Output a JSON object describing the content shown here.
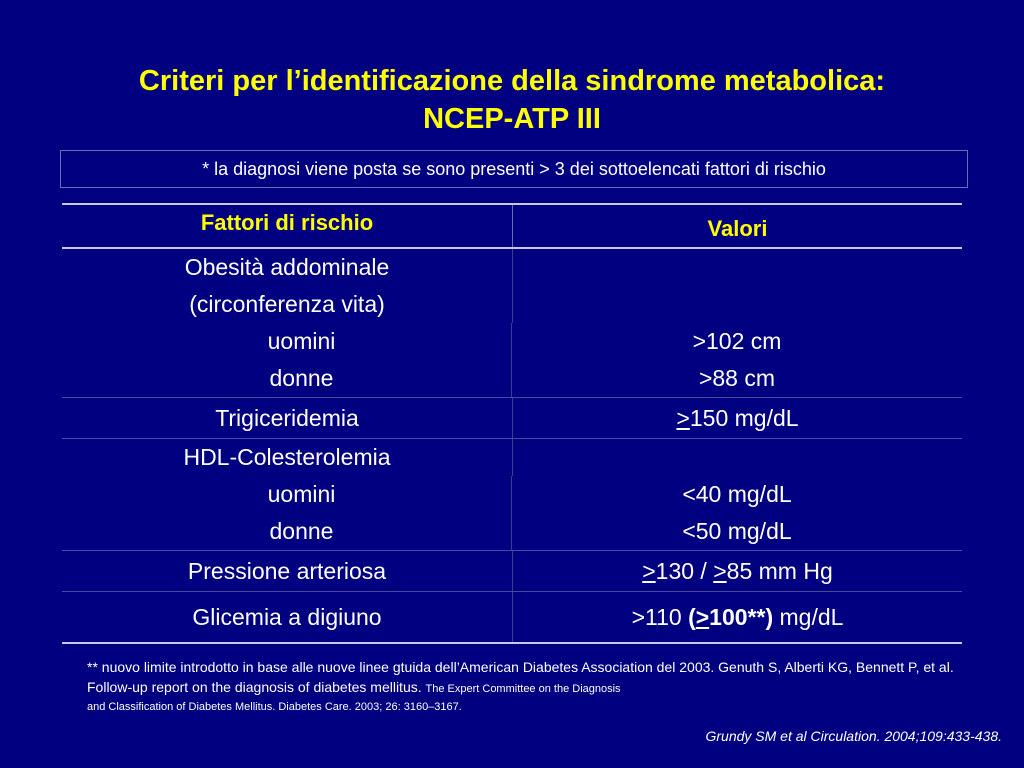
{
  "title": {
    "line1": "Criteri per l’identificazione della sindrome metabolica:",
    "line2": "NCEP-ATP III"
  },
  "note": "* la diagnosi viene posta se sono presenti > 3 dei sottoelencati fattori di rischio",
  "table": {
    "header": {
      "factor": "Fattori di rischio",
      "value": "Valori"
    },
    "obesity": {
      "label1": "Obesità addominale",
      "label2": "(circonferenza vita)",
      "men_label": "uomini",
      "men_value": ">102 cm",
      "women_label": "donne",
      "women_value": ">88 cm"
    },
    "triglycerides": {
      "label": "Trigiceridemia",
      "op": ">",
      "value": "150 mg/dL"
    },
    "hdl": {
      "label": "HDL-Colesterolemia",
      "men_label": "uomini",
      "men_value": "<40 mg/dL",
      "women_label": "donne",
      "women_value": "<50 mg/dL"
    },
    "pressure": {
      "label": "Pressione arteriosa",
      "op1": ">",
      "v1": "130 / ",
      "op2": ">",
      "v2": "85 mm Hg"
    },
    "glucose": {
      "label": "Glicemia a digiuno",
      "v1": ">110 ",
      "b_open": "(",
      "b_op": ">",
      "b_val": "100**)",
      "v2": " mg/dL"
    }
  },
  "footnote": {
    "text1": "** nuovo limite introdotto in base alle nuove linee gtuida dell’American Diabetes Association del 2003. Genuth S, Alberti KG, Bennett P, et al. Follow-up report on the diagnosis of diabetes mellitus. ",
    "text_small1": "The Expert Committee on the Diagnosis",
    "text_small2": "and Classification of Diabetes Mellitus. Diabetes Care. 2003; 26: 3160–3167."
  },
  "citation": "Grundy SM et al Circulation. 2004;109:433-438."
}
